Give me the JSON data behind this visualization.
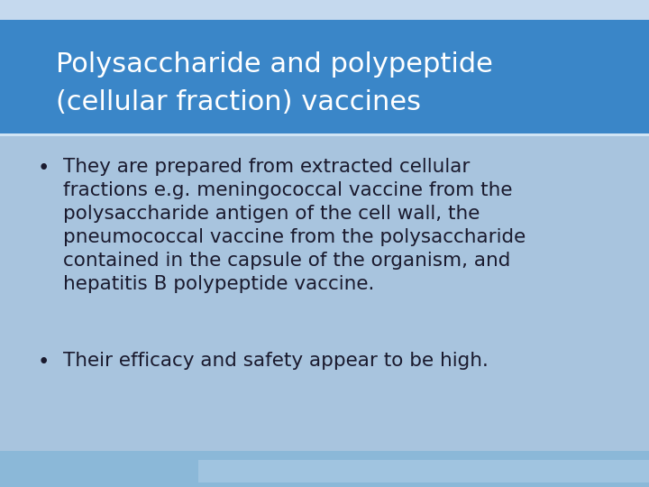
{
  "background_color": "#a8c4de",
  "title_bg_color": "#3a86c8",
  "title_line1": "Polysaccharide and polypeptide",
  "title_line2": "(cellular fraction) vaccines",
  "title_text_color": "#ffffff",
  "title_fontsize": 22,
  "bullet_text_color": "#1a1a2e",
  "bullet_fontsize": 15.5,
  "bullet1_lines": [
    "They are prepared from extracted cellular",
    "fractions e.g. meningococcal vaccine from the",
    "polysaccharide antigen of the cell wall, the",
    "pneumococcal vaccine from the polysaccharide",
    "contained in the capsule of the organism, and",
    "hepatitis B polypeptide vaccine."
  ],
  "bullet2_text": "Their efficacy and safety appear to be high.",
  "top_strip_color": "#c5d9ee",
  "bottom_bar_color": "#8bb8d8",
  "bottom_bar2_color": "#a0c4e0",
  "figsize": [
    7.2,
    5.4
  ],
  "dpi": 100
}
